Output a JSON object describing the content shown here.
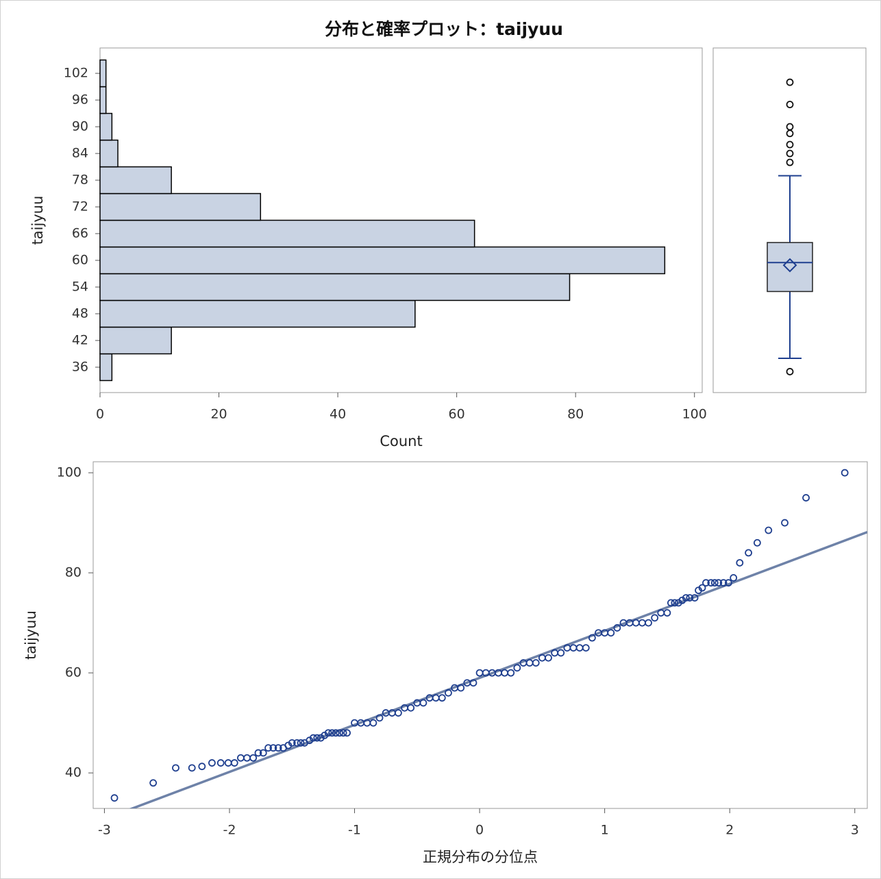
{
  "chart_data": [
    {
      "type": "histogram",
      "orientation": "horizontal",
      "title": "分布と確率プロット：taijyuu",
      "xlabel": "Count",
      "ylabel": "taijyuu",
      "bins": [
        33,
        39,
        45,
        51,
        57,
        63,
        69,
        75,
        81,
        87,
        93,
        99,
        105
      ],
      "values": [
        2,
        12,
        53,
        79,
        95,
        63,
        27,
        12,
        3,
        2,
        1,
        1
      ],
      "color": "#c9d3e3",
      "edge_color": "#000000",
      "xlim": [
        0,
        101.3
      ],
      "xticks": [
        0,
        20,
        40,
        60,
        80,
        100
      ],
      "ylim": [
        30.3,
        107.7
      ],
      "yticks": [
        36,
        42,
        48,
        54,
        60,
        66,
        72,
        78,
        84,
        90,
        96,
        102
      ]
    },
    {
      "type": "box",
      "ylim": [
        30.3,
        107.7
      ],
      "q1": 53,
      "q3": 64,
      "median": 59.5,
      "mean": 58.9,
      "whisker_low": 38,
      "whisker_high": 79,
      "outliers": [
        35,
        82,
        84,
        86,
        88.5,
        90,
        95,
        100
      ],
      "color": "#c9d3e3",
      "line_color": "#1f3f8f"
    },
    {
      "type": "scatter",
      "xlabel": "正規分布の分位点",
      "ylabel": "taijyuu",
      "xlim": [
        -3.09,
        3.1
      ],
      "xticks": [
        -3,
        -2,
        -1,
        0,
        1,
        2,
        3
      ],
      "ylim": [
        32.9,
        102.2
      ],
      "yticks": [
        40,
        60,
        80,
        100
      ],
      "color": "#1f3f8f",
      "reference_line": {
        "intercept": 59,
        "slope": 9.4,
        "color": "#6e82a8"
      },
      "x": [
        -2.92,
        -2.61,
        -2.43,
        -2.3,
        -2.22,
        -2.14,
        -2.07,
        -2.01,
        -1.96,
        -1.91,
        -1.86,
        -1.81,
        -1.77,
        -1.73,
        -1.69,
        -1.65,
        -1.61,
        -1.57,
        -1.53,
        -1.5,
        -1.46,
        -1.43,
        -1.4,
        -1.36,
        -1.33,
        -1.3,
        -1.27,
        -1.24,
        -1.21,
        -1.18,
        -1.15,
        -1.12,
        -1.09,
        -1.06,
        -1.0,
        -0.95,
        -0.9,
        -0.85,
        -0.8,
        -0.75,
        -0.7,
        -0.65,
        -0.6,
        -0.55,
        -0.5,
        -0.45,
        -0.4,
        -0.35,
        -0.3,
        -0.25,
        -0.2,
        -0.15,
        -0.1,
        -0.05,
        0.0,
        0.05,
        0.1,
        0.15,
        0.2,
        0.25,
        0.3,
        0.35,
        0.4,
        0.45,
        0.5,
        0.55,
        0.6,
        0.65,
        0.7,
        0.75,
        0.8,
        0.85,
        0.9,
        0.95,
        1.0,
        1.05,
        1.1,
        1.15,
        1.2,
        1.25,
        1.3,
        1.35,
        1.4,
        1.45,
        1.5,
        1.53,
        1.56,
        1.59,
        1.62,
        1.65,
        1.68,
        1.72,
        1.75,
        1.78,
        1.81,
        1.85,
        1.88,
        1.91,
        1.95,
        1.99,
        2.03,
        2.08,
        2.15,
        2.22,
        2.31,
        2.44,
        2.61,
        2.92
      ],
      "y": [
        35,
        38,
        41,
        41,
        41.3,
        42,
        42,
        42,
        42,
        43,
        43,
        43,
        44,
        44,
        45,
        45,
        45,
        45,
        45.5,
        46,
        46,
        46,
        46,
        46.5,
        47,
        47,
        47,
        47.5,
        48,
        48,
        48,
        48,
        48,
        48,
        50,
        50,
        50,
        50,
        51,
        52,
        52,
        52,
        53,
        53,
        54,
        54,
        55,
        55,
        55,
        56,
        57,
        57,
        58,
        58,
        60,
        60,
        60,
        60,
        60,
        60,
        61,
        62,
        62,
        62,
        63,
        63,
        64,
        64,
        65,
        65,
        65,
        65,
        67,
        68,
        68,
        68,
        69,
        70,
        70,
        70,
        70,
        70,
        71,
        72,
        72,
        74,
        74,
        74,
        74.5,
        75,
        75,
        75,
        76.5,
        77,
        78,
        78,
        78,
        78,
        78,
        78,
        79,
        82,
        84,
        86,
        88.5,
        90,
        95,
        100
      ]
    }
  ]
}
